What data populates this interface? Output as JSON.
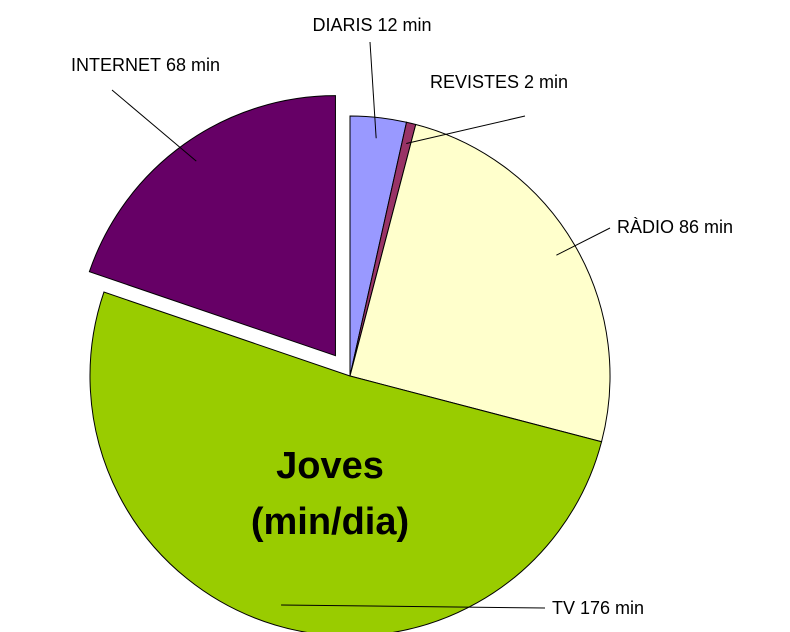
{
  "chart_data": {
    "type": "pie",
    "title": "Joves (min/dia)",
    "categories": [
      "DIARIS",
      "REVISTES",
      "RÀDIO",
      "TV",
      "INTERNET"
    ],
    "values": [
      12,
      2,
      86,
      176,
      68
    ],
    "value_labels": [
      "12 min",
      "2 min",
      "86 min",
      "176 min",
      "68 min"
    ],
    "colors": [
      "#9999ff",
      "#993366",
      "#ffffcc",
      "#99cc00",
      "#660066"
    ],
    "exploded": [
      false,
      false,
      false,
      false,
      true
    ]
  }
}
